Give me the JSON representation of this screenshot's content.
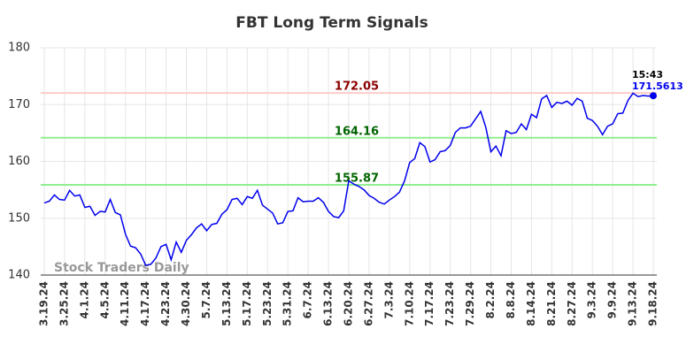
{
  "chart_data": {
    "type": "line",
    "title": "FBT Long Term Signals",
    "categories": [
      "3.19.24",
      null,
      null,
      null,
      "3.25.24",
      null,
      null,
      null,
      "4.1.24",
      null,
      null,
      null,
      "4.5.24",
      null,
      null,
      null,
      "4.11.24",
      null,
      null,
      null,
      "4.17.24",
      null,
      null,
      null,
      "4.23.24",
      null,
      null,
      null,
      "4.30.24",
      null,
      null,
      null,
      "5.7.24",
      null,
      null,
      null,
      "5.13.24",
      null,
      null,
      null,
      "5.17.24",
      null,
      null,
      null,
      "5.23.24",
      null,
      null,
      null,
      "5.31.24",
      null,
      null,
      null,
      "6.7.24",
      null,
      null,
      null,
      "6.13.24",
      null,
      null,
      null,
      "6.20.24",
      null,
      null,
      null,
      "6.27.24",
      null,
      null,
      null,
      "7.3.24",
      null,
      null,
      null,
      "7.10.24",
      null,
      null,
      null,
      "7.17.24",
      null,
      null,
      null,
      "7.23.24",
      null,
      null,
      null,
      "7.29.24",
      null,
      null,
      null,
      "8.2.24",
      null,
      null,
      null,
      "8.8.24",
      null,
      null,
      null,
      "8.14.24",
      null,
      null,
      null,
      "8.21.24",
      null,
      null,
      null,
      "8.27.24",
      null,
      null,
      null,
      "9.3.24",
      null,
      null,
      null,
      "9.9.24",
      null,
      null,
      null,
      "9.13.24",
      null,
      null,
      null,
      "9.18.24"
    ],
    "series": [
      {
        "color": "#0000ee",
        "values": [
          152.7,
          153.0,
          154.1,
          153.3,
          153.2,
          154.9,
          153.9,
          154.1,
          151.9,
          152.1,
          150.5,
          151.2,
          151.1,
          153.3,
          151.0,
          150.6,
          147.2,
          145.1,
          144.8,
          143.7,
          141.7,
          141.9,
          143.0,
          145.0,
          145.4,
          142.7,
          145.8,
          144.0,
          146.1,
          147.1,
          148.3,
          149.0,
          147.8,
          148.9,
          149.1,
          150.7,
          151.5,
          153.3,
          153.5,
          152.4,
          153.8,
          153.5,
          154.9,
          152.3,
          151.6,
          150.9,
          149.0,
          149.2,
          151.2,
          151.3,
          153.6,
          152.9,
          153.0,
          153.0,
          153.6,
          152.8,
          151.2,
          150.3,
          150.1,
          151.3,
          156.6,
          156.0,
          155.6,
          155.0,
          154.0,
          153.5,
          152.8,
          152.5,
          153.2,
          153.8,
          154.6,
          156.6,
          159.8,
          160.5,
          163.3,
          162.6,
          159.9,
          160.3,
          161.7,
          161.9,
          162.8,
          165.1,
          165.9,
          165.9,
          166.2,
          167.5,
          168.8,
          166.0,
          161.7,
          162.7,
          161.0,
          165.4,
          164.9,
          165.1,
          166.6,
          165.6,
          168.3,
          167.7,
          171.0,
          171.6,
          169.5,
          170.4,
          170.2,
          170.6,
          169.9,
          171.1,
          170.6,
          167.6,
          167.2,
          166.2,
          164.7,
          166.2,
          166.6,
          168.4,
          168.5,
          170.7,
          172.0,
          171.4,
          171.6,
          171.5,
          171.5613
        ]
      }
    ],
    "levels": [
      {
        "value": 172.05,
        "color": "#ffcccc",
        "label_color": "#8b0000"
      },
      {
        "value": 164.16,
        "color": "#90ee90",
        "label_color": "#006400"
      },
      {
        "value": 155.87,
        "color": "#90ee90",
        "label_color": "#006400"
      }
    ],
    "time_label": "15:43",
    "watermark": "Stock Traders Daily",
    "ylim": [
      140,
      180
    ],
    "yticks": [
      140,
      150,
      160,
      170,
      180
    ],
    "grid": true
  }
}
